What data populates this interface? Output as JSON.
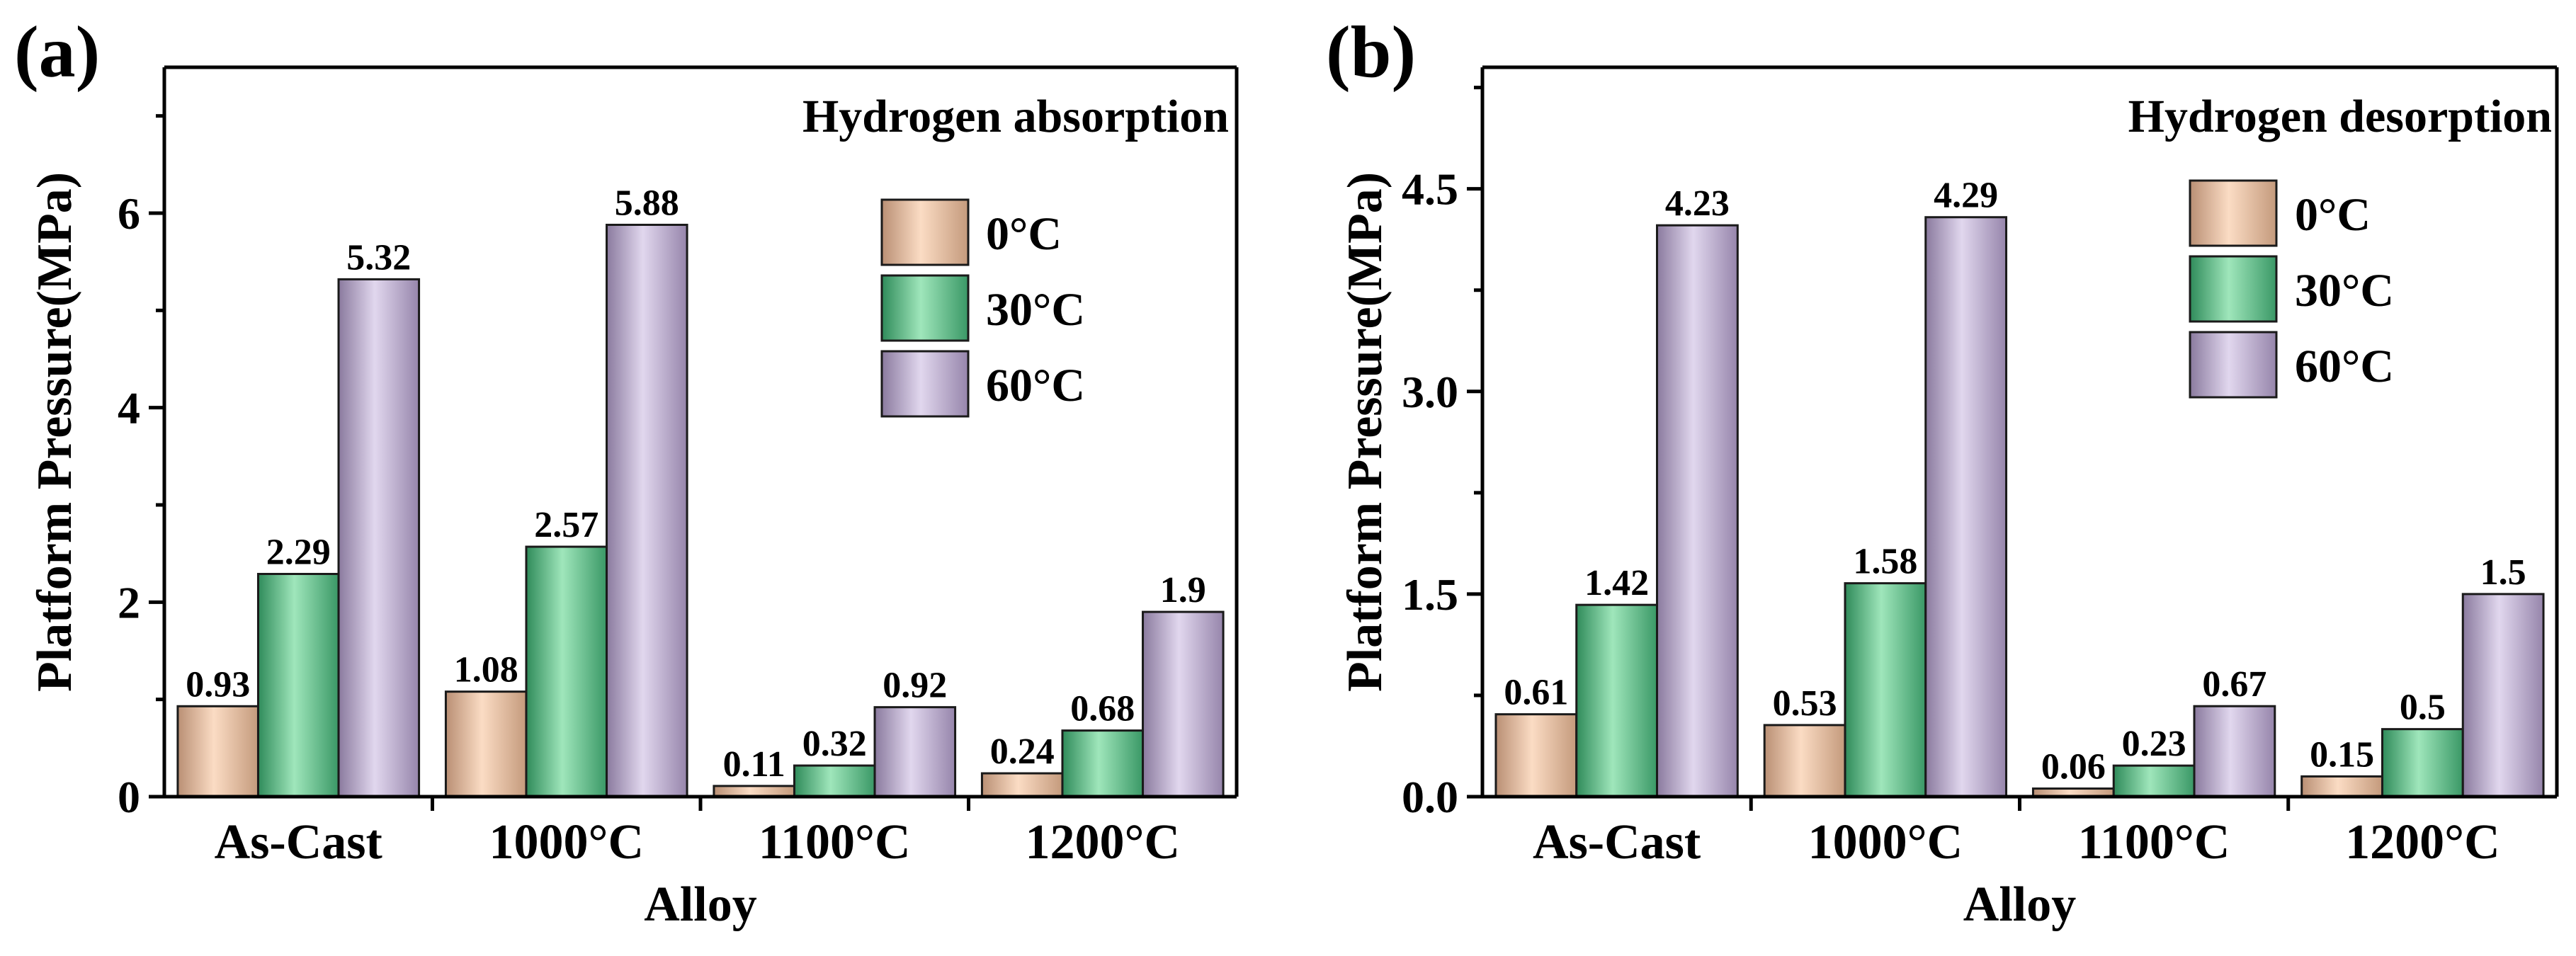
{
  "colors": {
    "0C": "#f3c7a7",
    "30C": "#6dcb92",
    "60C": "#bfb0d1"
  },
  "chart_data": [
    {
      "type": "bar",
      "panel_label": "(a)",
      "title": "Hydrogen absorption",
      "xlabel": "Alloy",
      "ylabel": "Platform Pressure(MPa)",
      "categories": [
        "As-Cast",
        "1000°C",
        "1100°C",
        "1200°C"
      ],
      "ylim": [
        0,
        7.5
      ],
      "yticks": [
        0,
        2,
        4,
        6
      ],
      "ytick_labels": [
        "0",
        "2",
        "4",
        "6"
      ],
      "legend_position": "upper-right",
      "series": [
        {
          "name": "0°C",
          "values": [
            0.93,
            1.08,
            0.11,
            0.24
          ],
          "labels": [
            "0.93",
            "1.08",
            "0.11",
            "0.24"
          ]
        },
        {
          "name": "30°C",
          "values": [
            2.29,
            2.57,
            0.32,
            0.68
          ],
          "labels": [
            "2.29",
            "2.57",
            "0.32",
            "0.68"
          ]
        },
        {
          "name": "60°C",
          "values": [
            5.32,
            5.88,
            0.92,
            1.9
          ],
          "labels": [
            "5.32",
            "5.88",
            "0.92",
            "1.9"
          ]
        }
      ]
    },
    {
      "type": "bar",
      "panel_label": "(b)",
      "title": "Hydrogen desorption",
      "xlabel": "Alloy",
      "ylabel": "Platform Pressure(MPa)",
      "categories": [
        "As-Cast",
        "1000°C",
        "1100°C",
        "1200°C"
      ],
      "ylim": [
        0,
        5.4
      ],
      "yticks": [
        0,
        1.5,
        3,
        4.5
      ],
      "ytick_labels": [
        "0.0",
        "1.5",
        "3.0",
        "4.5"
      ],
      "legend_position": "upper-right",
      "series": [
        {
          "name": "0°C",
          "values": [
            0.61,
            0.53,
            0.06,
            0.15
          ],
          "labels": [
            "0.61",
            "0.53",
            "0.06",
            "0.15"
          ]
        },
        {
          "name": "30°C",
          "values": [
            1.42,
            1.58,
            0.23,
            0.5
          ],
          "labels": [
            "1.42",
            "1.58",
            "0.23",
            "0.5"
          ]
        },
        {
          "name": "60°C",
          "values": [
            4.23,
            4.29,
            0.67,
            1.5
          ],
          "labels": [
            "4.23",
            "4.29",
            "0.67",
            "1.5"
          ]
        }
      ]
    }
  ]
}
